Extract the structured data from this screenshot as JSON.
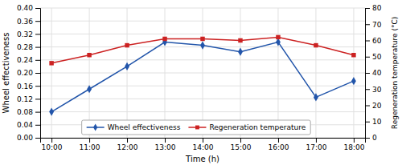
{
  "chart_data": {
    "type": "line",
    "categories": [
      "10:00",
      "11:00",
      "12:00",
      "13:00",
      "14:00",
      "15:00",
      "16:00",
      "17:00",
      "18:00"
    ],
    "series": [
      {
        "name": "Wheel effectiveness",
        "color": "#2255aa",
        "marker": "diamond",
        "values": [
          0.08,
          0.15,
          0.22,
          0.295,
          0.285,
          0.265,
          0.295,
          0.125,
          0.175
        ]
      },
      {
        "name": "Regeneration temperature",
        "color": "#cc2222",
        "marker": "square",
        "axis": "y2",
        "values": [
          46,
          51,
          57,
          61,
          61,
          60,
          62,
          57,
          51
        ]
      }
    ],
    "xlabel": "Time (h)",
    "ylabel": "Wheel effectiveness",
    "y2label": "Regeneration temperature (°C)",
    "ylim": [
      0,
      0.4
    ],
    "yticks": [
      {
        "value": 0,
        "label": "0.00"
      },
      0.04,
      0.08,
      0.12,
      0.16,
      {
        "value": 0.2,
        "label": "0.20"
      },
      0.24,
      0.28,
      0.32,
      0.36,
      {
        "value": 0.4,
        "label": "0.40"
      }
    ],
    "y2lim": [
      0,
      80
    ],
    "y2ticks": [
      0,
      10,
      20,
      30,
      40,
      50,
      60,
      70,
      80
    ],
    "grid": true,
    "legend": "bottom"
  }
}
